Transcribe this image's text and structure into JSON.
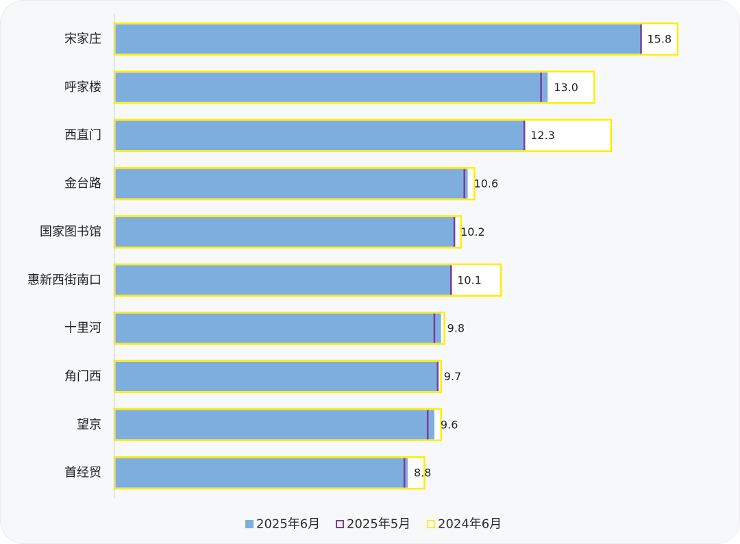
{
  "chart_data": {
    "type": "bar",
    "orientation": "horizontal",
    "categories": [
      "宋家庄",
      "呼家楼",
      "西直门",
      "金台路",
      "国家图书馆",
      "惠新西街南口",
      "十里河",
      "角门西",
      "望京",
      "首经贸"
    ],
    "series": [
      {
        "name": "2025年6月",
        "values": [
          15.8,
          13.0,
          12.3,
          10.6,
          10.2,
          10.1,
          9.8,
          9.7,
          9.6,
          8.8
        ],
        "style": "filled",
        "color": "#7eaedd"
      },
      {
        "name": "2025年5月",
        "values": [
          15.8,
          12.8,
          12.3,
          10.5,
          10.2,
          10.1,
          9.6,
          9.7,
          9.4,
          8.7
        ],
        "style": "marker",
        "color": "#7a3b9c"
      },
      {
        "name": "2024年6月",
        "values": [
          16.9,
          14.4,
          14.9,
          10.8,
          10.4,
          11.6,
          9.9,
          9.8,
          9.8,
          9.3
        ],
        "style": "outline",
        "color": "#ffee00"
      }
    ],
    "data_labels": [
      "15.8",
      "13.0",
      "12.3",
      "10.6",
      "10.2",
      "10.1",
      "9.8",
      "9.7",
      "9.6",
      "8.8"
    ],
    "xlim": [
      0,
      18
    ],
    "title": "",
    "xlabel": "",
    "ylabel": "",
    "grid": false,
    "legend_position": "bottom"
  }
}
